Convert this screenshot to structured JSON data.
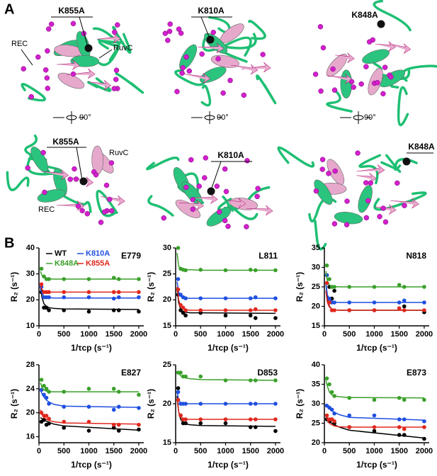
{
  "panel_a": {
    "label": "A",
    "top": [
      {
        "mutation": "K855A",
        "labels": [
          "REC",
          "RuvC"
        ]
      },
      {
        "mutation": "K810A"
      },
      {
        "mutation": "K848A"
      }
    ],
    "rotation": [
      "90°",
      "90°",
      "90°"
    ],
    "bottom": [
      {
        "mutation": "K855A",
        "labels": [
          "RuvC",
          "REC"
        ]
      },
      {
        "mutation": "K810A"
      },
      {
        "mutation": "K848A"
      }
    ]
  },
  "panel_b": {
    "label": "B"
  },
  "chart_data": [
    {
      "type": "scatter",
      "title": "E779",
      "x_label": "1/τcp (s⁻¹)",
      "y_label": "R₂ (s⁻¹)",
      "x": [
        50,
        100,
        150,
        200,
        500,
        1000,
        1500,
        1600,
        2000
      ],
      "xlim": [
        0,
        2100
      ],
      "xticks": [
        0,
        500,
        1000,
        1500,
        2000
      ],
      "ylim": [
        10,
        40
      ],
      "yticks": [
        10,
        20,
        30,
        40
      ],
      "fit_x": [
        30,
        60,
        100,
        150,
        200,
        300,
        500,
        2000
      ],
      "series": [
        {
          "name": "WT",
          "color": "#000000",
          "values": [
            23,
            17,
            17,
            16,
            16,
            15.5,
            16,
            16,
            15.5
          ],
          "fit": [
            25,
            21,
            18.5,
            17.5,
            17,
            16.7,
            16.5,
            16.3
          ]
        },
        {
          "name": "K810A",
          "color": "#1f4fe0",
          "values": [
            25,
            21,
            21,
            21,
            21,
            21,
            20.5,
            21,
            21
          ],
          "fit": [
            24,
            22.5,
            21.5,
            21,
            20.8,
            20.7,
            20.7,
            20.7
          ]
        },
        {
          "name": "K848A",
          "color": "#3aa02a",
          "values": [
            32,
            29,
            28,
            28,
            28,
            28,
            28.5,
            28,
            28
          ],
          "fit": [
            31,
            29.5,
            28.7,
            28.3,
            28.1,
            28,
            28,
            28
          ]
        },
        {
          "name": "K855A",
          "color": "#e0281e",
          "values": [
            26,
            23,
            23,
            23,
            23,
            23,
            23,
            23,
            23
          ],
          "fit": [
            26,
            24,
            23.3,
            23,
            23,
            23,
            23,
            23
          ]
        }
      ]
    },
    {
      "type": "scatter",
      "title": "L811",
      "x_label": "1/τcp (s⁻¹)",
      "y_label": "R₂ (s⁻¹)",
      "x": [
        50,
        100,
        150,
        200,
        500,
        1000,
        1500,
        1600,
        2000
      ],
      "xlim": [
        0,
        2100
      ],
      "xticks": [
        0,
        500,
        1000,
        1500,
        2000
      ],
      "ylim": [
        15,
        30
      ],
      "yticks": [
        15,
        20,
        25,
        30
      ],
      "fit_x": [
        30,
        60,
        100,
        150,
        200,
        300,
        500,
        2000
      ],
      "series": [
        {
          "color": "#000000",
          "values": [
            21,
            18,
            17.5,
            17,
            17.5,
            17,
            17,
            16.5,
            16.5
          ],
          "fit": [
            22,
            19.5,
            18.2,
            17.8,
            17.6,
            17.5,
            17.5,
            17.4
          ]
        },
        {
          "color": "#1f4fe0",
          "values": [
            24,
            21,
            20.5,
            20.3,
            20.3,
            20.3,
            20.3,
            20.5,
            20.3
          ],
          "fit": [
            23.5,
            21.5,
            20.7,
            20.4,
            20.3,
            20.3,
            20.3,
            20.3
          ]
        },
        {
          "color": "#3aa02a",
          "values": [
            30,
            26,
            25.8,
            25.7,
            25.8,
            25.7,
            25.8,
            25.7,
            25.7
          ],
          "fit": [
            29,
            26.5,
            26,
            25.8,
            25.8,
            25.8,
            25.7,
            25.7
          ]
        },
        {
          "color": "#e0281e",
          "values": [
            22,
            19,
            18.5,
            18,
            18,
            18,
            18,
            18.2,
            18
          ],
          "fit": [
            22.5,
            20,
            18.8,
            18.3,
            18.1,
            18,
            18,
            18
          ]
        }
      ]
    },
    {
      "type": "scatter",
      "title": "N818",
      "x_label": "1/τcp (s⁻¹)",
      "y_label": "R₂ (s⁻¹)",
      "x": [
        50,
        100,
        150,
        200,
        500,
        1000,
        1500,
        1600,
        2000
      ],
      "xlim": [
        0,
        2100
      ],
      "xticks": [
        0,
        500,
        1000,
        1500,
        2000
      ],
      "ylim": [
        15,
        35
      ],
      "yticks": [
        15,
        20,
        25,
        30,
        35
      ],
      "fit_x": [
        30,
        60,
        100,
        150,
        200,
        300,
        500,
        2000
      ],
      "series": [
        {
          "color": "#000000",
          "values": [
            28,
            25,
            22,
            24,
            19,
            19,
            19.5,
            20,
            18.5
          ],
          "fit": [
            26,
            22,
            20,
            19.3,
            19.1,
            19,
            19,
            19
          ]
        },
        {
          "color": "#1f4fe0",
          "values": [
            28,
            22,
            21,
            21,
            21,
            21,
            21,
            21.5,
            21
          ],
          "fit": [
            26,
            23,
            21.7,
            21.3,
            21.1,
            21,
            21,
            21
          ]
        },
        {
          "color": "#3aa02a",
          "values": [
            30.5,
            27,
            25,
            25,
            25,
            25,
            25.5,
            25,
            25
          ],
          "fit": [
            29,
            26.5,
            25.5,
            25.2,
            25.1,
            25,
            25,
            25
          ]
        },
        {
          "color": "#e0281e",
          "values": [
            26,
            21,
            19,
            19,
            19,
            19,
            19.5,
            19,
            19
          ],
          "fit": [
            24,
            21,
            19.8,
            19.3,
            19.1,
            19,
            19,
            19
          ]
        }
      ]
    },
    {
      "type": "scatter",
      "title": "E827",
      "x_label": "1/τcp (s⁻¹)",
      "y_label": "R₂ (s⁻¹)",
      "x": [
        50,
        100,
        150,
        200,
        500,
        1000,
        1500,
        1600,
        2000
      ],
      "xlim": [
        0,
        2100
      ],
      "xticks": [
        0,
        500,
        1000,
        1500,
        2000
      ],
      "ylim": [
        15,
        28
      ],
      "yticks": [
        16,
        20,
        24,
        28
      ],
      "fit_x": [
        30,
        60,
        100,
        150,
        200,
        300,
        500,
        2000
      ],
      "series": [
        {
          "color": "#000000",
          "values": [
            18.5,
            18.8,
            18,
            18.2,
            17.5,
            17,
            17.5,
            17,
            17.2
          ],
          "fit": [
            19.2,
            19,
            18.8,
            18.6,
            18.4,
            18.1,
            17.8,
            17.1
          ]
        },
        {
          "color": "#1f4fe0",
          "values": [
            23.8,
            23,
            22.5,
            21.5,
            21,
            21,
            20.5,
            21,
            20.8
          ],
          "fit": [
            23.8,
            23.2,
            22.6,
            22.1,
            21.8,
            21.4,
            21.1,
            20.9
          ]
        },
        {
          "color": "#3aa02a",
          "values": [
            25.5,
            24.5,
            24,
            23.5,
            23.5,
            24,
            24,
            23.5,
            23
          ],
          "fit": [
            25,
            24.2,
            23.8,
            23.6,
            23.5,
            23.5,
            23.5,
            23.5
          ]
        },
        {
          "color": "#e0281e",
          "values": [
            20,
            19.5,
            19.5,
            19,
            18.5,
            18.5,
            18,
            18,
            18
          ],
          "fit": [
            20.5,
            19.7,
            19.2,
            18.9,
            18.7,
            18.5,
            18.3,
            18.1
          ]
        }
      ]
    },
    {
      "type": "scatter",
      "title": "D853",
      "x_label": "1/τcp (s⁻¹)",
      "y_label": "R₂ (s⁻¹)",
      "x": [
        50,
        100,
        150,
        200,
        500,
        1000,
        1500,
        1600,
        2000
      ],
      "xlim": [
        0,
        2100
      ],
      "xticks": [
        0,
        500,
        1000,
        1500,
        2000
      ],
      "ylim": [
        15,
        25
      ],
      "yticks": [
        15,
        20,
        25
      ],
      "fit_x": [
        30,
        60,
        100,
        150,
        200,
        300,
        500,
        2000
      ],
      "series": [
        {
          "color": "#000000",
          "values": [
            22,
            18.5,
            17.5,
            17.5,
            17.5,
            17.5,
            17,
            17,
            16.5
          ],
          "fit": [
            21,
            19,
            18,
            17.6,
            17.4,
            17.3,
            17.2,
            17.1
          ]
        },
        {
          "color": "#1f4fe0",
          "values": [
            21.5,
            20,
            20,
            20,
            20,
            20,
            20,
            20,
            20
          ],
          "fit": [
            21.5,
            20.5,
            20.1,
            20,
            20,
            20,
            20,
            20
          ]
        },
        {
          "color": "#3aa02a",
          "values": [
            24,
            24,
            23.5,
            23.5,
            23.5,
            23,
            23,
            23,
            23
          ],
          "fit": [
            24.2,
            23.9,
            23.6,
            23.4,
            23.3,
            23.2,
            23.1,
            23
          ]
        },
        {
          "color": "#e0281e",
          "values": [
            20.5,
            18.5,
            18,
            18,
            18,
            18,
            18,
            18,
            18
          ],
          "fit": [
            20.5,
            19,
            18.3,
            18.1,
            18,
            18,
            18,
            18
          ]
        }
      ]
    },
    {
      "type": "scatter",
      "title": "E873",
      "x_label": "1/τcp (s⁻¹)",
      "y_label": "R₂ (s⁻¹)",
      "x": [
        50,
        100,
        150,
        200,
        500,
        1000,
        1500,
        1600,
        2000
      ],
      "xlim": [
        0,
        2100
      ],
      "xticks": [
        0,
        500,
        1000,
        1500,
        2000
      ],
      "ylim": [
        20,
        40
      ],
      "yticks": [
        20,
        25,
        30,
        35,
        40
      ],
      "fit_x": [
        30,
        60,
        100,
        150,
        200,
        300,
        500,
        2000
      ],
      "series": [
        {
          "color": "#000000",
          "values": [
            26,
            25.5,
            26,
            25,
            24,
            23,
            22,
            22,
            21
          ],
          "fit": [
            26.5,
            26,
            25.5,
            25,
            24.6,
            24,
            23.2,
            21.2
          ]
        },
        {
          "color": "#1f4fe0",
          "values": [
            29.5,
            29,
            28.5,
            27.5,
            27,
            27,
            26,
            26,
            25.5
          ],
          "fit": [
            30,
            29.3,
            28.7,
            28.2,
            27.8,
            27.2,
            26.5,
            25.8
          ]
        },
        {
          "color": "#3aa02a",
          "values": [
            36.5,
            35,
            33,
            32,
            31.5,
            31,
            31.5,
            31,
            31
          ],
          "fit": [
            36,
            34.5,
            33,
            32.3,
            32,
            31.8,
            31.6,
            31.5
          ]
        },
        {
          "color": "#e0281e",
          "values": [
            27,
            26,
            26,
            25.5,
            24,
            24,
            24,
            23.5,
            24
          ],
          "fit": [
            27,
            25.8,
            25,
            24.6,
            24.3,
            24.1,
            24,
            24
          ]
        }
      ]
    }
  ]
}
